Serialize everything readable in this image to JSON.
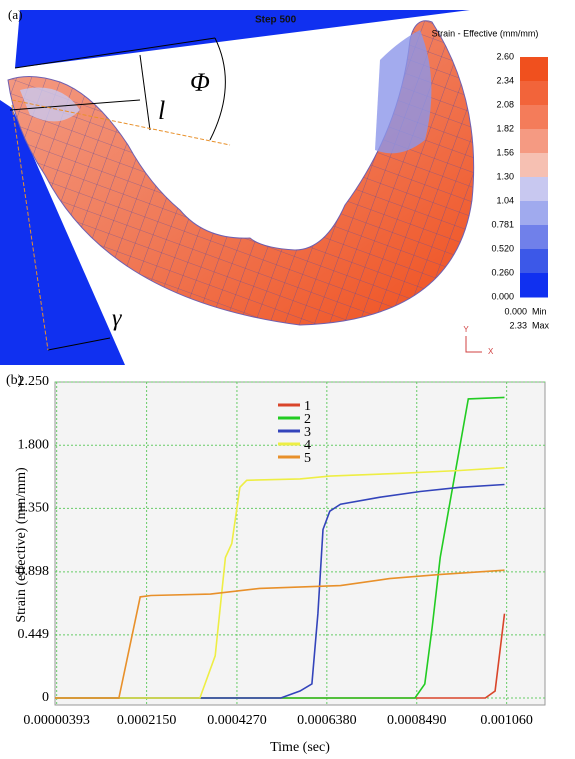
{
  "panel_a": {
    "label": "(a)",
    "step": "Step 500",
    "legend_title": "Strain - Effective (mm/mm)",
    "colorbar": {
      "labels": [
        "2.60",
        "2.34",
        "2.08",
        "1.82",
        "1.56",
        "1.30",
        "1.04",
        "0.781",
        "0.520",
        "0.260",
        "0.000"
      ],
      "colors": [
        "#f0501e",
        "#f2643a",
        "#f47c5a",
        "#f59a82",
        "#f6c0b2",
        "#c8c8f0",
        "#a0aaee",
        "#7080ea",
        "#3c58e8",
        "#1030f0"
      ]
    },
    "min_value": "0.000",
    "min_label": "Min",
    "max_value": "2.33",
    "max_label": "Max",
    "axis_y": "Y",
    "axis_x": "X",
    "symbol_l": "l",
    "symbol_phi": "Φ",
    "symbol_gamma": "γ"
  },
  "chart_data": {
    "type": "line",
    "panel_label": "(b)",
    "xlabel": "Time (sec)",
    "ylabel": "Strain (effective) (mm/mm)",
    "xlim": [
      0,
      0.00115
    ],
    "ylim": [
      -0.05,
      2.25
    ],
    "xticks": [
      {
        "value": 3.93e-06,
        "label": "0.00000393"
      },
      {
        "value": 0.000215,
        "label": "0.0002150"
      },
      {
        "value": 0.000427,
        "label": "0.0004270"
      },
      {
        "value": 0.000638,
        "label": "0.0006380"
      },
      {
        "value": 0.000849,
        "label": "0.0008490"
      },
      {
        "value": 0.00106,
        "label": "0.001060"
      }
    ],
    "yticks": [
      0,
      0.449,
      0.898,
      {
        "value": 1.35,
        "label": "1.350"
      },
      {
        "value": 1.8,
        "label": "1.800"
      },
      {
        "value": 2.25,
        "label": "2.250"
      }
    ],
    "grid": true,
    "series": [
      {
        "name": "1",
        "color": "#d9452a",
        "x": [
          0,
          0.00101,
          0.001033,
          0.001055
        ],
        "values": [
          0,
          0,
          0.05,
          0.6
        ]
      },
      {
        "name": "2",
        "color": "#22cc22",
        "x": [
          0,
          0.000845,
          0.000868,
          0.000885,
          0.000904,
          0.000939,
          0.00097,
          0.001055
        ],
        "values": [
          0,
          0,
          0.1,
          0.5,
          1.0,
          1.6,
          2.13,
          2.14
        ]
      },
      {
        "name": "3",
        "color": "#3344bb",
        "x": [
          0,
          0.00053,
          0.000575,
          0.000603,
          0.000617,
          0.000629,
          0.000645,
          0.00067,
          0.000763,
          0.000857,
          0.00095,
          0.001055
        ],
        "values": [
          0,
          0,
          0.05,
          0.1,
          0.6,
          1.2,
          1.33,
          1.38,
          1.43,
          1.47,
          1.5,
          1.52
        ]
      },
      {
        "name": "4",
        "color": "#eeee44",
        "x": [
          0,
          0.00034,
          0.000376,
          0.0004,
          0.000415,
          0.000434,
          0.00045,
          0.000575,
          0.000645,
          0.00081,
          0.00095,
          0.001055
        ],
        "values": [
          0,
          0,
          0.3,
          1.0,
          1.1,
          1.5,
          1.55,
          1.56,
          1.58,
          1.6,
          1.62,
          1.64
        ]
      },
      {
        "name": "5",
        "color": "#e8902a",
        "x": [
          0,
          0.00015,
          0.0002,
          0.000225,
          0.000365,
          0.00048,
          0.00067,
          0.000785,
          0.000905,
          0.001055
        ],
        "values": [
          0,
          0,
          0.72,
          0.73,
          0.74,
          0.78,
          0.8,
          0.85,
          0.88,
          0.91
        ]
      }
    ]
  }
}
